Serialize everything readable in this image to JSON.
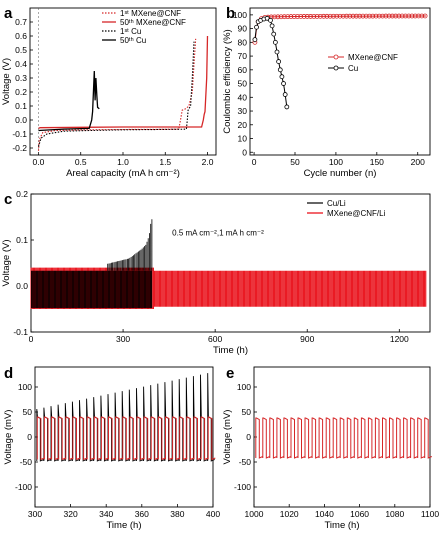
{
  "chart_data": [
    {
      "panel": "a",
      "type": "line",
      "xlabel": "Areal capacity (mA h cm⁻²)",
      "ylabel": "Voltage (V)",
      "xlim": [
        -0.1,
        2.1
      ],
      "ylim": [
        -0.25,
        0.8
      ],
      "xticks": [
        0.0,
        0.5,
        1.0,
        1.5,
        2.0
      ],
      "xtick_labels": [
        "0.0",
        "0.5",
        "1.0",
        "1.5",
        "2.0"
      ],
      "yticks": [
        -0.2,
        -0.1,
        0.0,
        0.1,
        0.2,
        0.3,
        0.4,
        0.5,
        0.6,
        0.7
      ],
      "ytick_labels": [
        "-0.2",
        "-0.1",
        "0.0",
        "0.1",
        "0.2",
        "0.3",
        "0.4",
        "0.5",
        "0.6",
        "0.7"
      ],
      "legend_position": "top-right",
      "series": [
        {
          "name": "1ˢᵗ MXene@CNF",
          "color": "#d62728",
          "dash": "dotted",
          "points": [
            [
              0.0,
              -0.22
            ],
            [
              0.01,
              -0.14
            ],
            [
              0.05,
              -0.09
            ],
            [
              0.2,
              -0.075
            ],
            [
              0.6,
              -0.07
            ],
            [
              1.0,
              -0.068
            ],
            [
              1.4,
              -0.067
            ],
            [
              1.66,
              -0.065
            ],
            [
              1.68,
              0.0
            ],
            [
              1.7,
              0.07
            ],
            [
              1.74,
              0.08
            ],
            [
              1.78,
              0.1
            ],
            [
              1.82,
              0.2
            ],
            [
              1.84,
              0.4
            ],
            [
              1.86,
              0.58
            ]
          ]
        },
        {
          "name": "50ᵗʰ MXene@CNF",
          "color": "#d62728",
          "dash": "solid",
          "points": [
            [
              0.0,
              -0.06
            ],
            [
              0.02,
              -0.055
            ],
            [
              0.5,
              -0.052
            ],
            [
              1.0,
              -0.05
            ],
            [
              1.5,
              -0.05
            ],
            [
              1.93,
              -0.05
            ],
            [
              1.95,
              0.0
            ],
            [
              1.96,
              0.04
            ],
            [
              1.97,
              0.06
            ],
            [
              1.99,
              0.3
            ],
            [
              2.0,
              0.6
            ]
          ]
        },
        {
          "name": "1ˢᵗ Cu",
          "color": "#000000",
          "dash": "dotted",
          "points": [
            [
              0.0,
              -0.19
            ],
            [
              0.03,
              -0.13
            ],
            [
              0.1,
              -0.1
            ],
            [
              0.3,
              -0.08
            ],
            [
              0.6,
              -0.075
            ],
            [
              1.0,
              -0.07
            ],
            [
              1.4,
              -0.068
            ],
            [
              1.75,
              -0.066
            ],
            [
              1.76,
              0.0
            ],
            [
              1.77,
              0.07
            ],
            [
              1.8,
              0.1
            ],
            [
              1.82,
              0.3
            ],
            [
              1.84,
              0.56
            ]
          ]
        },
        {
          "name": "50ᵗʰ Cu",
          "color": "#000000",
          "dash": "solid",
          "points": [
            [
              0.0,
              -0.075
            ],
            [
              0.3,
              -0.065
            ],
            [
              0.6,
              -0.06
            ],
            [
              0.63,
              0.0
            ],
            [
              0.64,
              0.06
            ],
            [
              0.66,
              0.35
            ],
            [
              0.67,
              0.14
            ],
            [
              0.68,
              0.3
            ],
            [
              0.69,
              0.18
            ],
            [
              0.7,
              0.09
            ],
            [
              0.72,
              0.08
            ]
          ]
        }
      ]
    },
    {
      "panel": "b",
      "type": "line",
      "xlabel": "Cycle number (n)",
      "ylabel": "Coulombic efficiency (%)",
      "xlim": [
        -5,
        215
      ],
      "ylim": [
        -2,
        105
      ],
      "xticks": [
        0,
        50,
        100,
        150,
        200
      ],
      "xtick_labels": [
        "0",
        "50",
        "100",
        "150",
        "200"
      ],
      "yticks": [
        0,
        10,
        20,
        30,
        40,
        50,
        60,
        70,
        80,
        90,
        100
      ],
      "ytick_labels": [
        "0",
        "10",
        "20",
        "30",
        "40",
        "50",
        "60",
        "70",
        "80",
        "90",
        "100"
      ],
      "legend_position": "middle-right",
      "series": [
        {
          "name": "MXene@CNF",
          "color": "#d62728",
          "marker": "circle",
          "x_start": 1,
          "x_end": 210,
          "points": [
            [
              1,
              80
            ],
            [
              3,
              90
            ],
            [
              5,
              95
            ],
            [
              8,
              97
            ],
            [
              12,
              98
            ],
            [
              20,
              98.5
            ],
            [
              50,
              98.8
            ],
            [
              100,
              99
            ],
            [
              150,
              99.1
            ],
            [
              210,
              99.2
            ]
          ]
        },
        {
          "name": "Cu",
          "color": "#000000",
          "marker": "circle",
          "points": [
            [
              1,
              82
            ],
            [
              3,
              91
            ],
            [
              5,
              95
            ],
            [
              8,
              96
            ],
            [
              12,
              97
            ],
            [
              16,
              97.5
            ],
            [
              20,
              96
            ],
            [
              22,
              92
            ],
            [
              24,
              86
            ],
            [
              26,
              80
            ],
            [
              28,
              73
            ],
            [
              30,
              66
            ],
            [
              32,
              60
            ],
            [
              34,
              55
            ],
            [
              36,
              50
            ],
            [
              38,
              42
            ],
            [
              40,
              33
            ]
          ]
        }
      ]
    },
    {
      "panel": "c",
      "type": "line",
      "xlabel": "Time (h)",
      "ylabel": "Voltage (V)",
      "xlim": [
        0,
        1300
      ],
      "ylim": [
        -0.1,
        0.2
      ],
      "xticks": [
        0,
        300,
        600,
        900,
        1200
      ],
      "xtick_labels": [
        "0",
        "300",
        "600",
        "900",
        "1200"
      ],
      "yticks": [
        -0.1,
        0.0,
        0.1,
        0.2
      ],
      "ytick_labels": [
        "-0.1",
        "0.0",
        "0.1",
        "0.2"
      ],
      "annotation": "0.5 mA cm⁻²,1 mA h cm⁻²",
      "legend_position": "top-right",
      "series": [
        {
          "name": "Cu/Li",
          "color": "#000000",
          "t_end": 395,
          "band_upper": 0.033,
          "band_lower": -0.048,
          "spikes": [
            [
              260,
              0.05
            ],
            [
              290,
              0.055
            ],
            [
              320,
              0.06
            ],
            [
              340,
              0.07
            ],
            [
              360,
              0.08
            ],
            [
              375,
              0.09
            ],
            [
              385,
              0.11
            ],
            [
              392,
              0.145
            ]
          ]
        },
        {
          "name": "MXene@CNF/Li",
          "color": "#e8000b",
          "t_end": 1290,
          "band_upper": 0.04,
          "band_lower": -0.05,
          "band_upper_late": 0.033,
          "band_lower_late": -0.045
        }
      ]
    },
    {
      "panel": "d",
      "type": "line",
      "xlabel": "Time (h)",
      "ylabel": "Voltage (mV)",
      "xlim": [
        300,
        400
      ],
      "ylim": [
        -140,
        140
      ],
      "xticks": [
        300,
        320,
        340,
        360,
        380,
        400
      ],
      "xtick_labels": [
        "300",
        "320",
        "340",
        "360",
        "380",
        "400"
      ],
      "yticks": [
        -100,
        -50,
        0,
        50,
        100
      ],
      "ytick_labels": [
        "-100",
        "-50",
        "0",
        "50",
        "100"
      ],
      "cycle_period_h": 4,
      "series": [
        {
          "name": "MXene@CNF/Li",
          "color": "#d62728",
          "upper": 40,
          "lower": -45
        },
        {
          "name": "Cu/Li",
          "color": "#000000",
          "upper": 40,
          "lower": -48,
          "spike_start": 55,
          "spike_end": 130
        }
      ]
    },
    {
      "panel": "e",
      "type": "line",
      "xlabel": "Time (h)",
      "ylabel": "Voltage (mV)",
      "xlim": [
        1000,
        1100
      ],
      "ylim": [
        -140,
        140
      ],
      "xticks": [
        1000,
        1020,
        1040,
        1060,
        1080,
        1100
      ],
      "xtick_labels": [
        "1000",
        "1020",
        "1040",
        "1060",
        "1080",
        "1100"
      ],
      "yticks": [
        -100,
        -50,
        0,
        50,
        100
      ],
      "ytick_labels": [
        "-100",
        "-50",
        "0",
        "50",
        "100"
      ],
      "cycle_period_h": 4,
      "series": [
        {
          "name": "MXene@CNF/Li",
          "color": "#d62728",
          "upper": 38,
          "lower": -42
        }
      ]
    }
  ],
  "panel_letters": [
    "a",
    "b",
    "c",
    "d",
    "e"
  ]
}
